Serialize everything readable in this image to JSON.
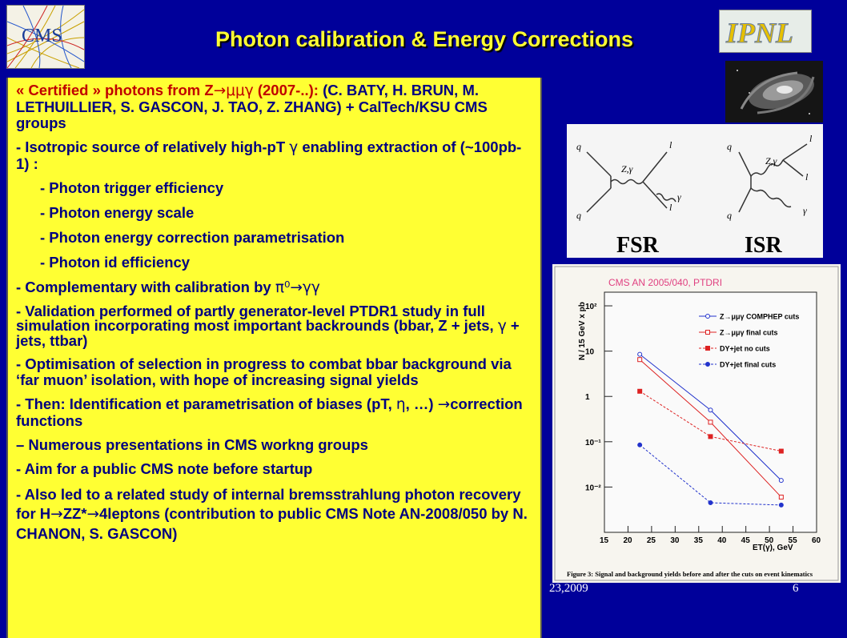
{
  "slide": {
    "title": "Photon calibration & Energy Corrections",
    "footer_date": "23,2009",
    "page_number": "6"
  },
  "logos": {
    "cms": "CMS",
    "ipnl": "IPNL"
  },
  "body": {
    "p1_red": "« Certified » photons from Z",
    "p1_arrow": "→",
    "p1_red_mu": "μμγ",
    "p1_red2": " (2007-..): ",
    "p1_names": "(C. BATY, H. BRUN, M. LETHUILLIER, S. GASCON, J. TAO, Z. ZHANG) + CalTech/KSU CMS groups",
    "p2a": "- Isotropic source of relatively high-pT ",
    "p2_gamma": "γ",
    "p2b": " enabling extraction of (~100pb-1) :",
    "items": [
      "- Photon trigger efficiency",
      "- Photon energy scale",
      "- Photon energy correction parametrisation",
      "- Photon id efficiency"
    ],
    "p3": "- Complementary with calibration by ",
    "p3_sym": "π⁰→γγ",
    "p4": "- Validation performed of partly generator-level PTDR1 study in full simulation incorporating most important backrounds (bbar, Z + jets, ",
    "p4_gamma": "γ",
    "p4b": " + jets, ttbar)",
    "p5": "- Optimisation of selection in progress to combat bbar background via ‘far muon’ isolation, with hope of increasing signal yields",
    "p6a": "- Then: Identification et parametrisation of biases (pT, ",
    "p6_eta": "η",
    "p6b": ", …) ",
    "p6_arrow": "→",
    "p6c": "correction functions",
    "p7": "– Numerous presentations in CMS workng groups",
    "p8": "- Aim for a public CMS note before startup",
    "p9a": "- Also led to a related study of internal bremsstrahlung photon recovery for H",
    "p9_arrow1": "→",
    "p9b": "ZZ*",
    "p9_arrow2": "→",
    "p9c": "4leptons (contribution to public CMS Note AN-2008/050 by N. CHANON, S. GASCON)"
  },
  "feynman": {
    "fsr": "FSR",
    "isr": "ISR",
    "fsr_labels": [
      "Z,γ",
      "l",
      "l",
      "q",
      "q",
      "γ"
    ],
    "isr_labels": [
      "Z,γ",
      "l",
      "l",
      "q",
      "q",
      "γ"
    ]
  },
  "chart_data": {
    "type": "line",
    "source_label": "CMS AN 2005/040, PTDRI",
    "ylabel": "N / 15 GeV x pb",
    "xlabel": "ET(γ), GeV",
    "log_y": true,
    "xlim": [
      15,
      60
    ],
    "ylim": [
      0.001,
      200
    ],
    "x_ticks": [
      "15",
      "20",
      "25",
      "30",
      "35",
      "40",
      "45",
      "50",
      "55",
      "60"
    ],
    "y_ticks": [
      "10²",
      "10",
      "1",
      "10⁻¹",
      "10⁻²"
    ],
    "series": [
      {
        "name": "Z→μμγ COMPHEP cuts",
        "color": "#2233cc",
        "x": [
          22.5,
          37.5,
          52.5
        ],
        "y": [
          8.5,
          0.5,
          0.014
        ]
      },
      {
        "name": "Z→μμγ final cuts",
        "color": "#dd2222",
        "x": [
          22.5,
          37.5,
          52.5
        ],
        "y": [
          6.5,
          0.27,
          0.006
        ]
      },
      {
        "name": "DY+jet no cuts",
        "color": "#dd2222",
        "x": [
          22.5,
          37.5,
          52.5
        ],
        "y": [
          1.3,
          0.13,
          0.062
        ]
      },
      {
        "name": "DY+jet final cuts",
        "color": "#2233cc",
        "x": [
          22.5,
          37.5,
          52.5
        ],
        "y": [
          0.085,
          0.0045,
          0.004
        ]
      }
    ],
    "caption": "Figure 3: Signal and background yields before and after the cuts on event kinematics"
  },
  "colors": {
    "background": "#00009a",
    "title": "#ffff33",
    "textbox": "#ffff33",
    "text": "#000080",
    "red_text": "#c00000"
  }
}
